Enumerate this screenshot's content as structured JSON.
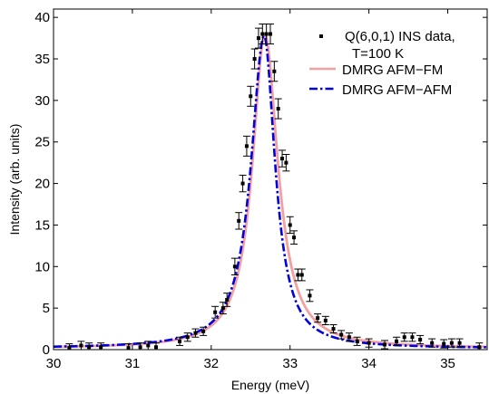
{
  "chart_data": {
    "type": "line",
    "xlabel": "Energy (meV)",
    "ylabel": "Intensity (arb. units)",
    "xlim": [
      30,
      35.5
    ],
    "ylim": [
      0,
      41
    ],
    "x_ticks": [
      "30",
      "31",
      "32",
      "33",
      "34",
      "35"
    ],
    "y_ticks": [
      "0",
      "5",
      "10",
      "15",
      "20",
      "25",
      "30",
      "35",
      "40"
    ],
    "grid": false,
    "legend_position": "top-right",
    "series": [
      {
        "name": "Q(6,0,1) INS data, T=100 K",
        "type": "scatter",
        "color": "#000000",
        "x": [
          30.2,
          30.35,
          30.45,
          30.6,
          30.95,
          31.1,
          31.2,
          31.3,
          31.6,
          31.7,
          31.8,
          31.9,
          32.05,
          32.15,
          32.2,
          32.3,
          32.35,
          32.4,
          32.45,
          32.5,
          32.55,
          32.6,
          32.65,
          32.7,
          32.75,
          32.8,
          32.85,
          32.9,
          32.95,
          33.0,
          33.05,
          33.1,
          33.15,
          33.25,
          33.35,
          33.45,
          33.55,
          33.65,
          33.75,
          33.85,
          34.0,
          34.2,
          34.35,
          34.45,
          34.55,
          34.65,
          34.8,
          34.95,
          35.05,
          35.15,
          35.4
        ],
        "y": [
          0.2,
          0.5,
          0.3,
          0.3,
          0.2,
          0.3,
          0.5,
          0.3,
          1.0,
          1.5,
          2.0,
          2.2,
          4.5,
          5.0,
          6.0,
          10.0,
          15.5,
          20.0,
          24.5,
          30.5,
          35.0,
          37.5,
          38.0,
          38.0,
          38.0,
          33.5,
          29.0,
          23.0,
          22.5,
          15.0,
          13.5,
          9.0,
          9.0,
          6.5,
          3.8,
          3.5,
          2.5,
          1.8,
          1.5,
          1.0,
          0.8,
          0.6,
          1.0,
          1.5,
          1.5,
          1.2,
          0.8,
          0.7,
          0.8,
          0.8,
          0.3
        ],
        "error": [
          0.5,
          0.5,
          0.5,
          0.5,
          0.5,
          0.5,
          0.5,
          0.5,
          0.5,
          0.5,
          0.5,
          0.5,
          0.7,
          0.7,
          0.8,
          1.0,
          1.0,
          1.0,
          1.2,
          1.2,
          1.2,
          1.2,
          1.2,
          1.2,
          1.2,
          1.2,
          1.2,
          1.0,
          1.0,
          1.0,
          0.8,
          0.7,
          0.7,
          0.7,
          0.5,
          0.5,
          0.5,
          0.5,
          0.5,
          0.5,
          0.5,
          0.5,
          0.5,
          0.5,
          0.5,
          0.5,
          0.5,
          0.5,
          0.5,
          0.5,
          0.5
        ]
      },
      {
        "name": "DMRG AFM−FM",
        "type": "line",
        "color": "#f4a0a0",
        "model": {
          "center": 32.68,
          "amplitude": 37.8,
          "width_low": 0.19,
          "width_high": 0.2,
          "baseline": 0.15
        }
      },
      {
        "name": "DMRG AFM−AFM",
        "type": "line",
        "color": "#0000e0",
        "model": {
          "center": 32.67,
          "amplitude": 37.6,
          "width_low": 0.2,
          "width_high": 0.17,
          "baseline": 0.15
        }
      }
    ],
    "legend": {
      "data_label_line1": "Q(6,0,1) INS data,",
      "data_label_line2": "T=100 K",
      "fm_label": "DMRG AFM−FM",
      "afm_label": "DMRG AFM−AFM"
    }
  }
}
